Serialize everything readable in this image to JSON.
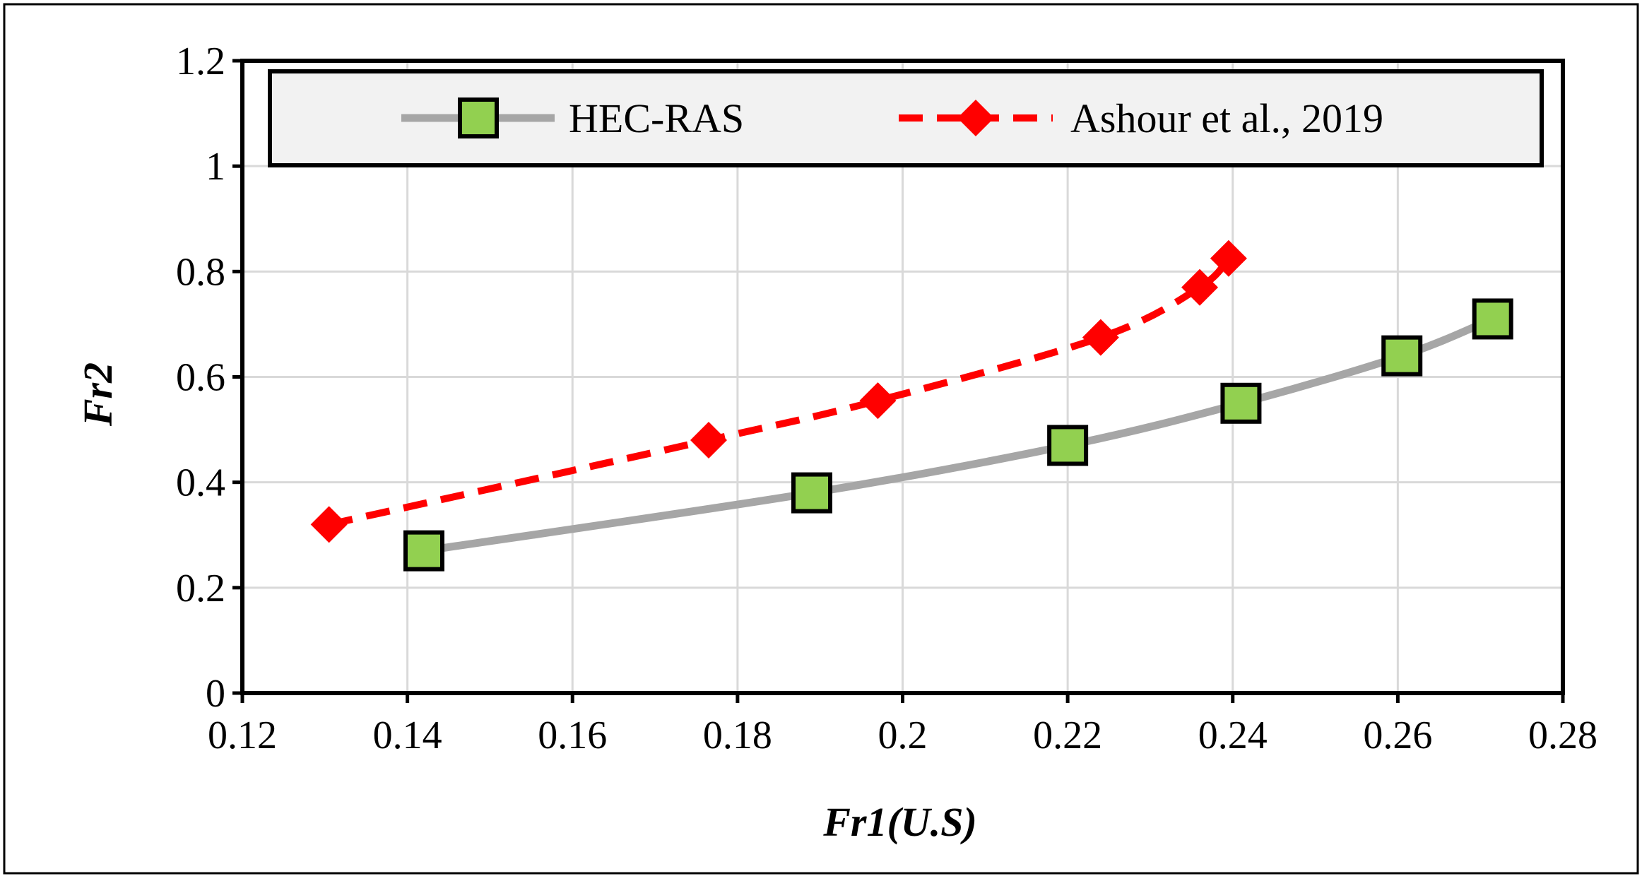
{
  "chart_data": {
    "type": "line",
    "xlabel": "Fr1(U.S)",
    "ylabel": "Fr2",
    "xlim": [
      0.12,
      0.28
    ],
    "ylim": [
      0,
      1.2
    ],
    "x_ticks": [
      "0.12",
      "0.14",
      "0.16",
      "0.18",
      "0.2",
      "0.22",
      "0.24",
      "0.26",
      "0.28"
    ],
    "y_ticks": [
      "0",
      "0.2",
      "0.4",
      "0.6",
      "0.8",
      "1",
      "1.2"
    ],
    "x_tick_values": [
      0.12,
      0.14,
      0.16,
      0.18,
      0.2,
      0.22,
      0.24,
      0.26,
      0.28
    ],
    "y_tick_values": [
      0,
      0.2,
      0.4,
      0.6,
      0.8,
      1.0,
      1.2
    ],
    "grid": true,
    "legend_position": "top",
    "series": [
      {
        "name": "HEC-RAS",
        "line_color": "#a6a6a6",
        "line_style": "solid",
        "marker": "square",
        "marker_color": "#92d050",
        "points": [
          {
            "x": 0.142,
            "y": 0.27
          },
          {
            "x": 0.189,
            "y": 0.38
          },
          {
            "x": 0.22,
            "y": 0.47
          },
          {
            "x": 0.241,
            "y": 0.55
          },
          {
            "x": 0.2605,
            "y": 0.64
          },
          {
            "x": 0.2715,
            "y": 0.71
          }
        ]
      },
      {
        "name": "Ashour et al., 2019",
        "line_color": "#ff0000",
        "line_style": "dashed",
        "marker": "diamond",
        "marker_color": "#ff0000",
        "points": [
          {
            "x": 0.1305,
            "y": 0.32
          },
          {
            "x": 0.1765,
            "y": 0.48
          },
          {
            "x": 0.197,
            "y": 0.555
          },
          {
            "x": 0.224,
            "y": 0.675
          },
          {
            "x": 0.236,
            "y": 0.77
          },
          {
            "x": 0.2395,
            "y": 0.825
          }
        ]
      }
    ]
  }
}
